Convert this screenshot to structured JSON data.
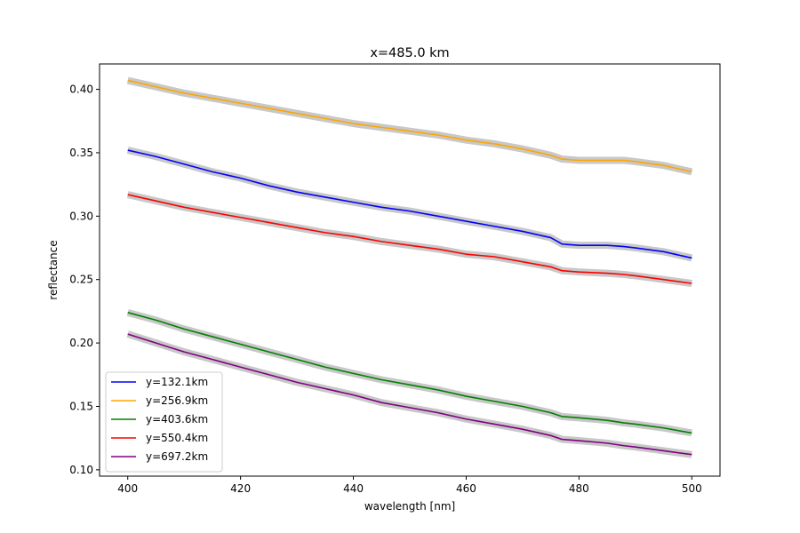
{
  "chart_data": {
    "type": "line",
    "title": "x=485.0 km",
    "xlabel": "wavelength [nm]",
    "ylabel": "reflectance",
    "xlim": [
      395,
      505
    ],
    "ylim": [
      0.095,
      0.42
    ],
    "xticks": [
      400,
      420,
      440,
      460,
      480,
      500
    ],
    "xtick_labels": [
      "400",
      "420",
      "440",
      "460",
      "480",
      "500"
    ],
    "yticks": [
      0.1,
      0.15,
      0.2,
      0.25,
      0.3,
      0.35,
      0.4
    ],
    "ytick_labels": [
      "0.10",
      "0.15",
      "0.20",
      "0.25",
      "0.30",
      "0.35",
      "0.40"
    ],
    "grid": false,
    "legend_position": "lower-left",
    "band_color": "#c8c8c8",
    "series": [
      {
        "name": "y=132.1km",
        "color": "#0000ff",
        "x": [
          400,
          405,
          410,
          415,
          420,
          425,
          430,
          435,
          440,
          445,
          450,
          455,
          460,
          465,
          470,
          475,
          477,
          480,
          485,
          488,
          490,
          495,
          500
        ],
        "y": [
          0.352,
          0.347,
          0.341,
          0.335,
          0.33,
          0.324,
          0.319,
          0.315,
          0.311,
          0.307,
          0.304,
          0.3,
          0.296,
          0.292,
          0.288,
          0.283,
          0.278,
          0.277,
          0.277,
          0.276,
          0.275,
          0.272,
          0.267
        ]
      },
      {
        "name": "y=256.9km",
        "color": "#ffa500",
        "x": [
          400,
          405,
          410,
          415,
          420,
          425,
          430,
          435,
          440,
          445,
          450,
          455,
          460,
          465,
          470,
          475,
          477,
          480,
          485,
          488,
          490,
          495,
          500
        ],
        "y": [
          0.407,
          0.402,
          0.397,
          0.393,
          0.389,
          0.385,
          0.381,
          0.377,
          0.373,
          0.37,
          0.367,
          0.364,
          0.36,
          0.357,
          0.353,
          0.348,
          0.345,
          0.344,
          0.344,
          0.344,
          0.343,
          0.34,
          0.335
        ]
      },
      {
        "name": "y=403.6km",
        "color": "#008000",
        "x": [
          400,
          405,
          410,
          415,
          420,
          425,
          430,
          435,
          440,
          445,
          450,
          455,
          460,
          465,
          470,
          475,
          477,
          480,
          485,
          488,
          490,
          495,
          500
        ],
        "y": [
          0.224,
          0.218,
          0.211,
          0.205,
          0.199,
          0.193,
          0.187,
          0.181,
          0.176,
          0.171,
          0.167,
          0.163,
          0.158,
          0.154,
          0.15,
          0.145,
          0.142,
          0.141,
          0.139,
          0.137,
          0.136,
          0.133,
          0.129
        ]
      },
      {
        "name": "y=550.4km",
        "color": "#ff0000",
        "x": [
          400,
          405,
          410,
          415,
          420,
          425,
          430,
          435,
          440,
          445,
          450,
          455,
          460,
          465,
          470,
          475,
          477,
          480,
          485,
          488,
          490,
          495,
          500
        ],
        "y": [
          0.317,
          0.312,
          0.307,
          0.303,
          0.299,
          0.295,
          0.291,
          0.287,
          0.284,
          0.28,
          0.277,
          0.274,
          0.27,
          0.268,
          0.264,
          0.26,
          0.257,
          0.256,
          0.255,
          0.254,
          0.253,
          0.25,
          0.247
        ]
      },
      {
        "name": "y=697.2km",
        "color": "#800080",
        "x": [
          400,
          405,
          410,
          415,
          420,
          425,
          430,
          435,
          440,
          445,
          450,
          455,
          460,
          465,
          470,
          475,
          477,
          480,
          485,
          488,
          490,
          495,
          500
        ],
        "y": [
          0.207,
          0.2,
          0.193,
          0.187,
          0.181,
          0.175,
          0.169,
          0.164,
          0.159,
          0.153,
          0.149,
          0.145,
          0.14,
          0.136,
          0.132,
          0.127,
          0.124,
          0.123,
          0.121,
          0.119,
          0.118,
          0.115,
          0.112
        ]
      }
    ]
  }
}
